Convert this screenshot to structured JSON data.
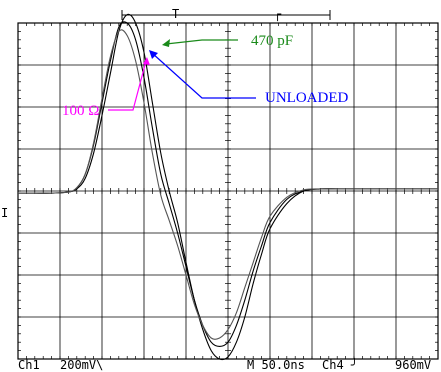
{
  "chart_data": {
    "type": "line",
    "title": "",
    "xlabel": "",
    "ylabel": "",
    "grid": true,
    "grid_divisions": {
      "x": 10,
      "y": 8
    },
    "x_scale_ns_per_div": 50.0,
    "y_scale_mV_per_div": 200,
    "xlim_ns": [
      0,
      500
    ],
    "ylim_mV": [
      -800,
      800
    ],
    "series": [
      {
        "name": "470 pF",
        "x": [
          0,
          20,
          40,
          60,
          70,
          80,
          90,
          100,
          110,
          120,
          130,
          140,
          150,
          160,
          170,
          180,
          190,
          200,
          210,
          220,
          230,
          240,
          250,
          260,
          270,
          280,
          290,
          300,
          320,
          340,
          360,
          380,
          400,
          440,
          480,
          500
        ],
        "y": [
          -10,
          -10,
          -10,
          -5,
          10,
          60,
          180,
          360,
          560,
          760,
          840,
          800,
          660,
          420,
          180,
          0,
          -150,
          -340,
          -520,
          -660,
          -760,
          -800,
          -790,
          -720,
          -600,
          -440,
          -300,
          -180,
          -60,
          0,
          10,
          10,
          10,
          10,
          10,
          10
        ],
        "color": "#000000"
      },
      {
        "name": "UNLOADED",
        "x": [
          0,
          20,
          40,
          60,
          70,
          80,
          90,
          100,
          110,
          120,
          130,
          140,
          150,
          160,
          170,
          180,
          190,
          200,
          210,
          220,
          230,
          240,
          250,
          260,
          270,
          280,
          290,
          300,
          320,
          340,
          360,
          380,
          400,
          440,
          480,
          500
        ],
        "y": [
          -10,
          -10,
          -10,
          -5,
          15,
          80,
          220,
          420,
          620,
          780,
          800,
          720,
          540,
          300,
          80,
          -60,
          -200,
          -360,
          -520,
          -640,
          -720,
          -740,
          -720,
          -640,
          -520,
          -380,
          -260,
          -150,
          -40,
          0,
          10,
          10,
          10,
          10,
          10,
          10
        ],
        "color": "#000000"
      },
      {
        "name": "100 Ω",
        "x": [
          0,
          20,
          40,
          60,
          70,
          80,
          90,
          100,
          110,
          120,
          130,
          140,
          150,
          160,
          170,
          180,
          190,
          200,
          210,
          220,
          230,
          240,
          250,
          260,
          270,
          280,
          290,
          300,
          320,
          340,
          360,
          380,
          400,
          440,
          480,
          500
        ],
        "y": [
          -10,
          -10,
          -10,
          -5,
          15,
          80,
          230,
          440,
          640,
          760,
          740,
          620,
          420,
          180,
          -20,
          -140,
          -260,
          -400,
          -540,
          -640,
          -700,
          -700,
          -660,
          -580,
          -460,
          -340,
          -220,
          -120,
          -30,
          5,
          10,
          10,
          10,
          10,
          10,
          10
        ],
        "color": "#555555"
      }
    ],
    "annotations": [
      {
        "text": "470 pF",
        "color": "#1a8a1a",
        "arrow_to_series": "470 pF"
      },
      {
        "text": "UNLOADED",
        "color": "#0000ff",
        "arrow_to_series": "UNLOADED"
      },
      {
        "text": "100 Ω",
        "color": "#ff00ff",
        "arrow_to_series": "100 Ω"
      }
    ],
    "readouts": {
      "ch1": "Ch1",
      "ch1_scale": "200mV\\",
      "timebase": "M 50.0ns",
      "trigger_channel": "Ch4 ╯",
      "trigger_level": "960mV"
    },
    "markers": {
      "ch1_ground": "I",
      "trigger_pos": "T",
      "trigger_marker": "┌"
    }
  }
}
